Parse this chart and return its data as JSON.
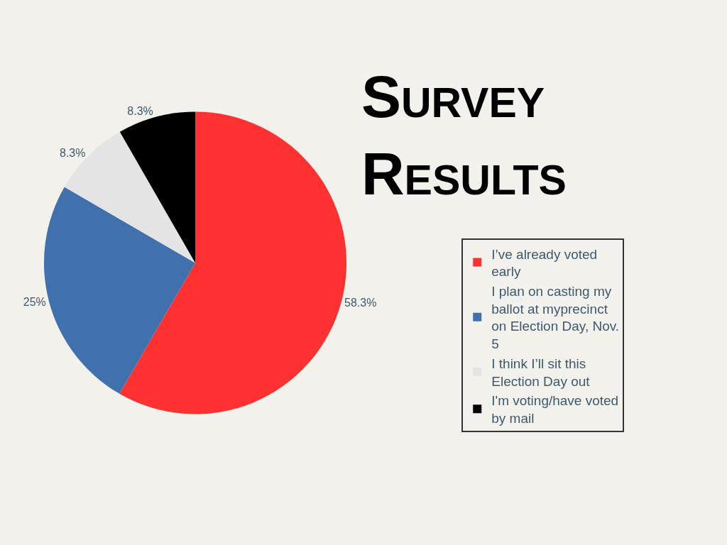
{
  "chart_data": {
    "type": "pie",
    "title": "Survey Results",
    "categories": [
      "I’ve already voted early",
      "I plan on casting my ballot at myprecinct on Election Day, Nov. 5",
      "I think I’ll sit this Election Day out",
      "I'm voting/have voted by mail"
    ],
    "values": [
      58.3,
      25,
      8.3,
      8.3
    ],
    "colors": [
      "#ff3131",
      "#4171ad",
      "#e4e4e4",
      "#000000"
    ],
    "value_labels": [
      "58.3%",
      "25%",
      "8.3%",
      "8.3%"
    ],
    "legend": "right"
  }
}
